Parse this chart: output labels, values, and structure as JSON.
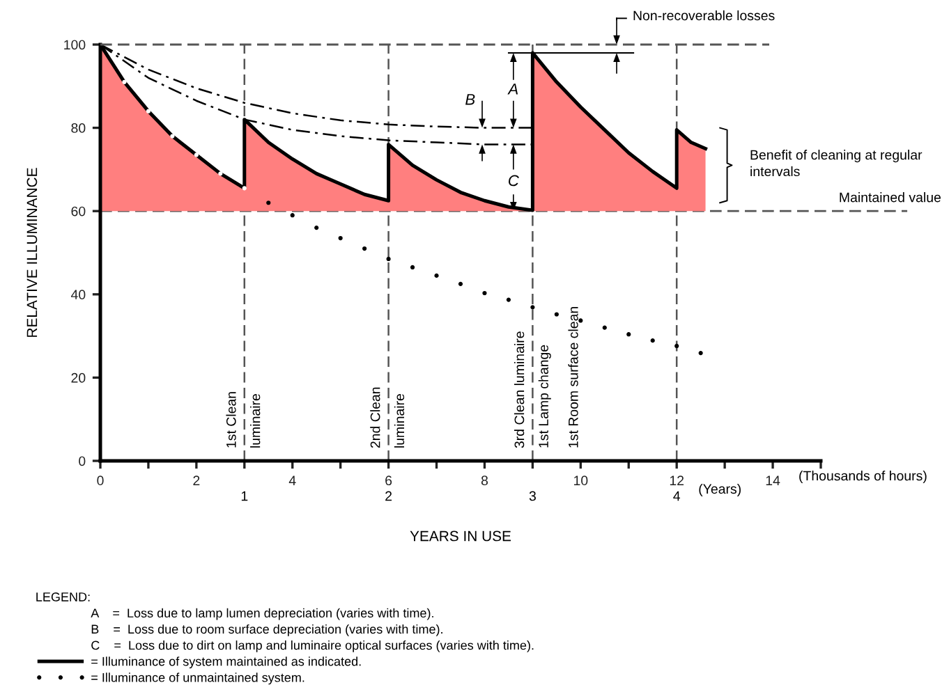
{
  "chart_data": {
    "type": "line",
    "ylabel": "RELATIVE ILLUMINANCE",
    "xlabel": "YEARS IN USE",
    "x2label": "(Years)",
    "legend_title": "LEGEND:",
    "xlim": [
      0,
      15
    ],
    "ylim": [
      0,
      100
    ],
    "xticks": [
      0,
      {
        "value": 1,
        "label": null
      },
      2,
      {
        "value": 3,
        "label": null
      },
      4,
      {
        "value": 5,
        "label": null
      },
      6,
      {
        "value": 7,
        "label": null
      },
      8,
      {
        "value": 9,
        "label": null
      },
      10,
      {
        "value": 11,
        "label": null
      },
      12,
      {
        "value": 13,
        "label": null
      },
      14,
      {
        "value": 15,
        "label": null
      }
    ],
    "yticks": [
      0,
      20,
      40,
      60,
      80,
      100
    ],
    "x2lim": [
      0,
      5
    ],
    "x2ticks": [
      1,
      2,
      3,
      4
    ],
    "grid": false,
    "legend": "bottom left",
    "series": [
      {
        "name": "= Illuminance of system maintained as indicated.",
        "type": "area",
        "color": "#ff7f7f",
        "line_style": "solid",
        "x": [
          0,
          0.5,
          1,
          1.5,
          2,
          2.5,
          3,
          3,
          3.5,
          4,
          4.5,
          5,
          5.5,
          6,
          6,
          6.5,
          7,
          7.5,
          8,
          8.5,
          9,
          9,
          9.5,
          10,
          10.5,
          11,
          11.5,
          12,
          12,
          12.3,
          12.6
        ],
        "values": [
          100,
          91,
          84,
          78,
          73.5,
          69,
          65.5,
          82,
          76.5,
          72.5,
          69,
          66.5,
          64,
          62.5,
          76,
          71,
          67.5,
          64.5,
          62.5,
          61,
          60.2,
          98,
          91,
          85,
          79.5,
          74,
          69.5,
          65.5,
          79.5,
          76.5,
          75
        ]
      },
      {
        "name": "= Illuminance of unmaintained system.",
        "type": "scatter",
        "color": "#000000",
        "marker": "circle",
        "colors": [
          "#ffffff",
          "#ffffff",
          "#ffffff",
          "#ffffff",
          "#ffffff",
          "#ffffff",
          "#000000",
          "#000000",
          "#000000",
          "#000000",
          "#000000",
          "#000000",
          "#000000",
          "#000000",
          "#000000",
          "#000000",
          "#000000",
          "#000000",
          "#000000",
          "#000000",
          "#000000",
          "#000000",
          "#000000",
          "#000000",
          "#000000"
        ],
        "x": [
          0.5,
          1,
          1.5,
          2,
          2.5,
          3,
          3.5,
          4,
          4.5,
          5,
          5.5,
          6,
          6.5,
          7,
          7.5,
          8,
          8.5,
          9,
          9.5,
          10,
          10.5,
          11,
          11.5,
          12,
          12.5
        ],
        "values": [
          91,
          84,
          78,
          73.5,
          69,
          65.5,
          62,
          59,
          56,
          53.5,
          51,
          48.5,
          46.5,
          44.5,
          42.5,
          40.3,
          38.7,
          36.9,
          35.2,
          33.7,
          32,
          30.4,
          28.9,
          27.6,
          25.9
        ]
      },
      {
        "color": "#000000",
        "line_style": "dashdot",
        "x": [
          0,
          1,
          2,
          3,
          4,
          5,
          6,
          7,
          8,
          9
        ],
        "values": [
          100,
          94,
          89.5,
          86,
          83.5,
          81.8,
          80.8,
          80.3,
          80,
          80
        ]
      },
      {
        "color": "#000000",
        "line_style": "dashdot",
        "x": [
          0,
          1,
          2,
          3,
          4,
          5,
          6,
          7,
          8,
          9
        ],
        "values": [
          100,
          92,
          86.5,
          82,
          79.5,
          78,
          77,
          76.5,
          76,
          76
        ]
      }
    ],
    "ref_lines": [
      {
        "axis": "y",
        "value": 100,
        "color": "#555555",
        "line_style": "dashed"
      },
      {
        "axis": "y",
        "value": 60,
        "label": "Maintained value",
        "color": "#555555",
        "line_style": "dashed"
      },
      {
        "axis": "x",
        "value": 3,
        "label": "1st Clean luminaire",
        "color": "#555555",
        "line_style": "dashed"
      },
      {
        "axis": "x",
        "value": 6,
        "label": "2nd Clean luminaire",
        "color": "#555555",
        "line_style": "dashed"
      },
      {
        "axis": "x",
        "value": 9,
        "label": "3rd Clean luminaire",
        "color": "#555555",
        "line_style": "dashed"
      },
      {
        "axis": "x",
        "value": 12,
        "color": "#555555",
        "line_style": "dashed"
      }
    ],
    "annotations": [
      "(Thousands of hours)",
      "Non-recoverable losses",
      "Benefit of cleaning at regular intervals",
      "A    =  Loss due to lamp lumen depreciation (varies with time).",
      "B    =  Loss due to room surface depreciation (varies with time).",
      "C    =  Loss due to dirt on lamp and luminaire optical surfaces (varies with time).",
      {
        "text": "A",
        "x": 8.6,
        "y": 89
      },
      {
        "text": "B",
        "x": 7.7,
        "y": 86.5
      },
      {
        "text": "C",
        "x": 8.6,
        "y": 67
      },
      {
        "text": "1st Lamp change",
        "x": 9,
        "y": 30
      },
      {
        "text": "1st Room surface clean",
        "x": 9,
        "y": 30
      }
    ]
  }
}
